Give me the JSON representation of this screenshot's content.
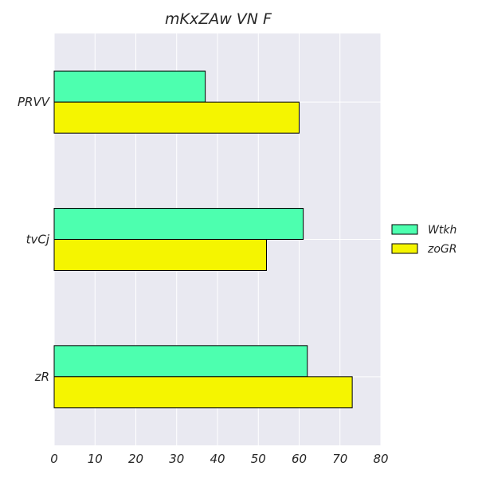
{
  "chart_data": {
    "type": "bar",
    "orientation": "horizontal",
    "title": "mKxZAw VN F",
    "xlabel": "",
    "ylabel": "",
    "categories": [
      "PRVV",
      "tvCj",
      "zR"
    ],
    "series": [
      {
        "name": "Wtkh",
        "color": "#4dffaf",
        "values": [
          37,
          61,
          62
        ]
      },
      {
        "name": "zoGR",
        "color": "#f5f500",
        "values": [
          60,
          52,
          73
        ]
      }
    ],
    "xlim": [
      0,
      80
    ],
    "xticks": [
      0,
      10,
      20,
      30,
      40,
      50,
      60,
      70,
      80
    ],
    "grid": true,
    "legend_position": "right",
    "background_color": "#e9e9f1",
    "edge_color": "#000000"
  }
}
